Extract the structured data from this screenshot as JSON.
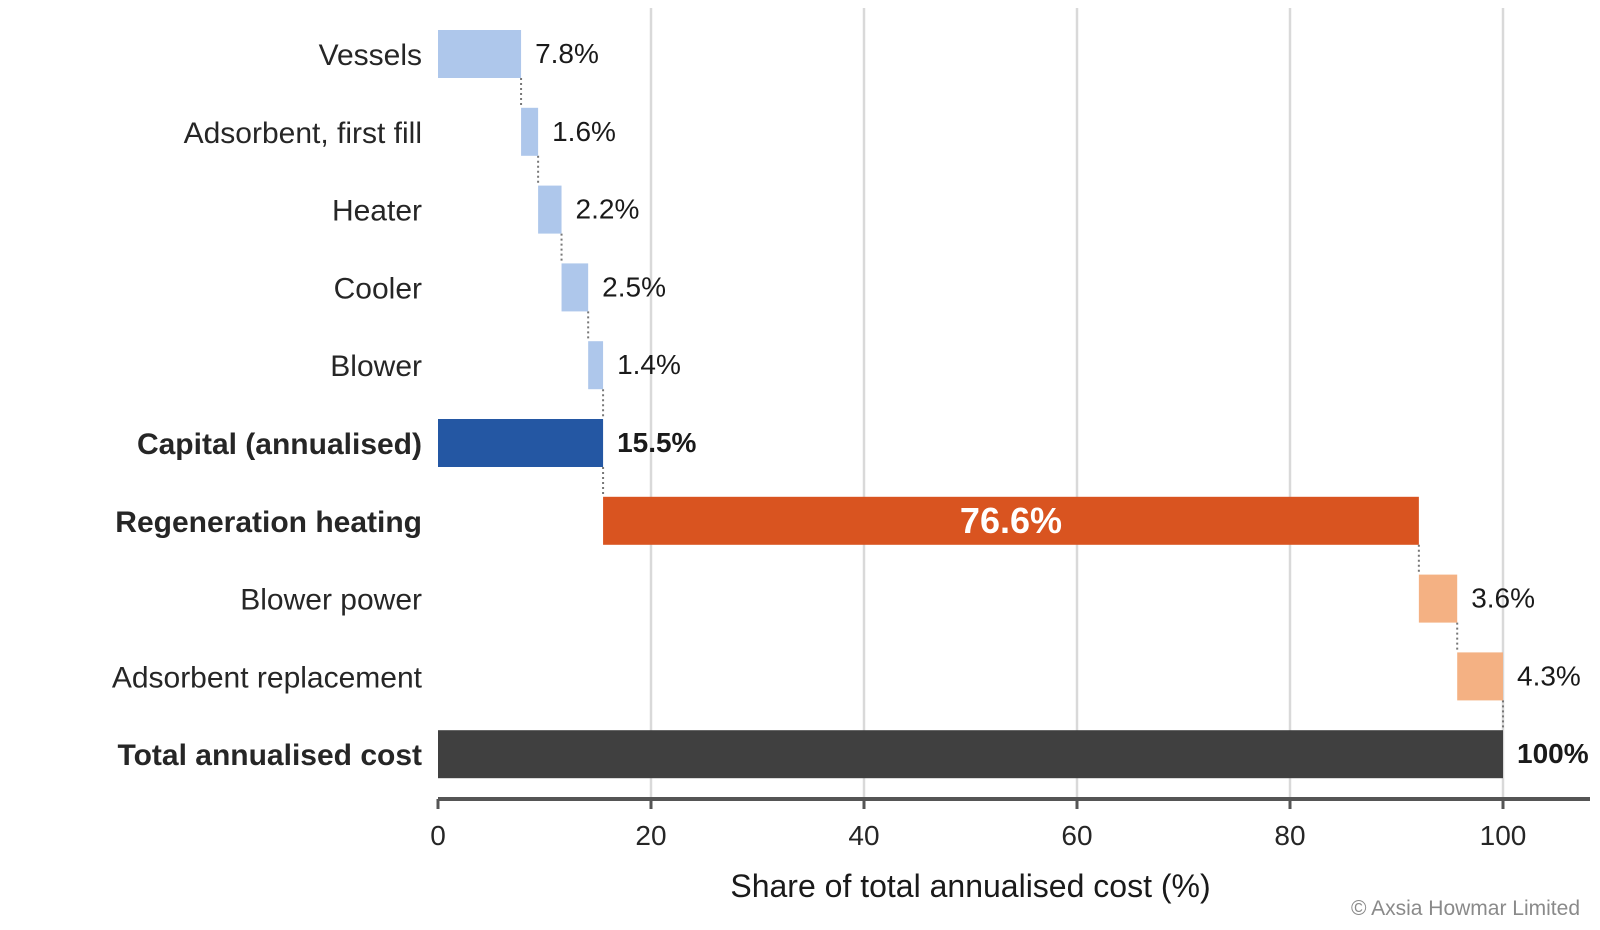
{
  "chart_data": {
    "type": "bar",
    "subtype": "horizontal-waterfall",
    "xlabel": "Share of total annualised cost (%)",
    "xlim": [
      0,
      100
    ],
    "xticks": [
      0,
      20,
      40,
      60,
      80,
      100
    ],
    "grid": true,
    "copyright": "© Axsia Howmar Limited",
    "steps": [
      {
        "category": "Vessels",
        "start": 0,
        "value": 7.8,
        "label": "7.8%",
        "color": "#aec7eb",
        "bold": false,
        "kind": "increment"
      },
      {
        "category": "Adsorbent, first fill",
        "start": 7.8,
        "value": 1.6,
        "label": "1.6%",
        "color": "#aec7eb",
        "bold": false,
        "kind": "increment"
      },
      {
        "category": "Heater",
        "start": 9.4,
        "value": 2.2,
        "label": "2.2%",
        "color": "#aec7eb",
        "bold": false,
        "kind": "increment"
      },
      {
        "category": "Cooler",
        "start": 11.6,
        "value": 2.5,
        "label": "2.5%",
        "color": "#aec7eb",
        "bold": false,
        "kind": "increment"
      },
      {
        "category": "Blower",
        "start": 14.1,
        "value": 1.4,
        "label": "1.4%",
        "color": "#aec7eb",
        "bold": false,
        "kind": "increment"
      },
      {
        "category": "Capital (annualised)",
        "start": 0,
        "value": 15.5,
        "label": "15.5%",
        "color": "#2457a3",
        "bold": true,
        "kind": "subtotal"
      },
      {
        "category": "Regeneration heating",
        "start": 15.5,
        "value": 76.6,
        "label": "76.6%",
        "color": "#d95420",
        "bold": true,
        "kind": "major",
        "label_inside": true
      },
      {
        "category": "Blower power",
        "start": 92.1,
        "value": 3.6,
        "label": "3.6%",
        "color": "#f4b183",
        "bold": false,
        "kind": "increment"
      },
      {
        "category": "Adsorbent replacement",
        "start": 95.7,
        "value": 4.3,
        "label": "4.3%",
        "color": "#f4b183",
        "bold": false,
        "kind": "increment"
      },
      {
        "category": "Total annualised cost",
        "start": 0,
        "value": 100,
        "label": "100%",
        "color": "#404040",
        "bold": true,
        "kind": "total"
      }
    ]
  }
}
